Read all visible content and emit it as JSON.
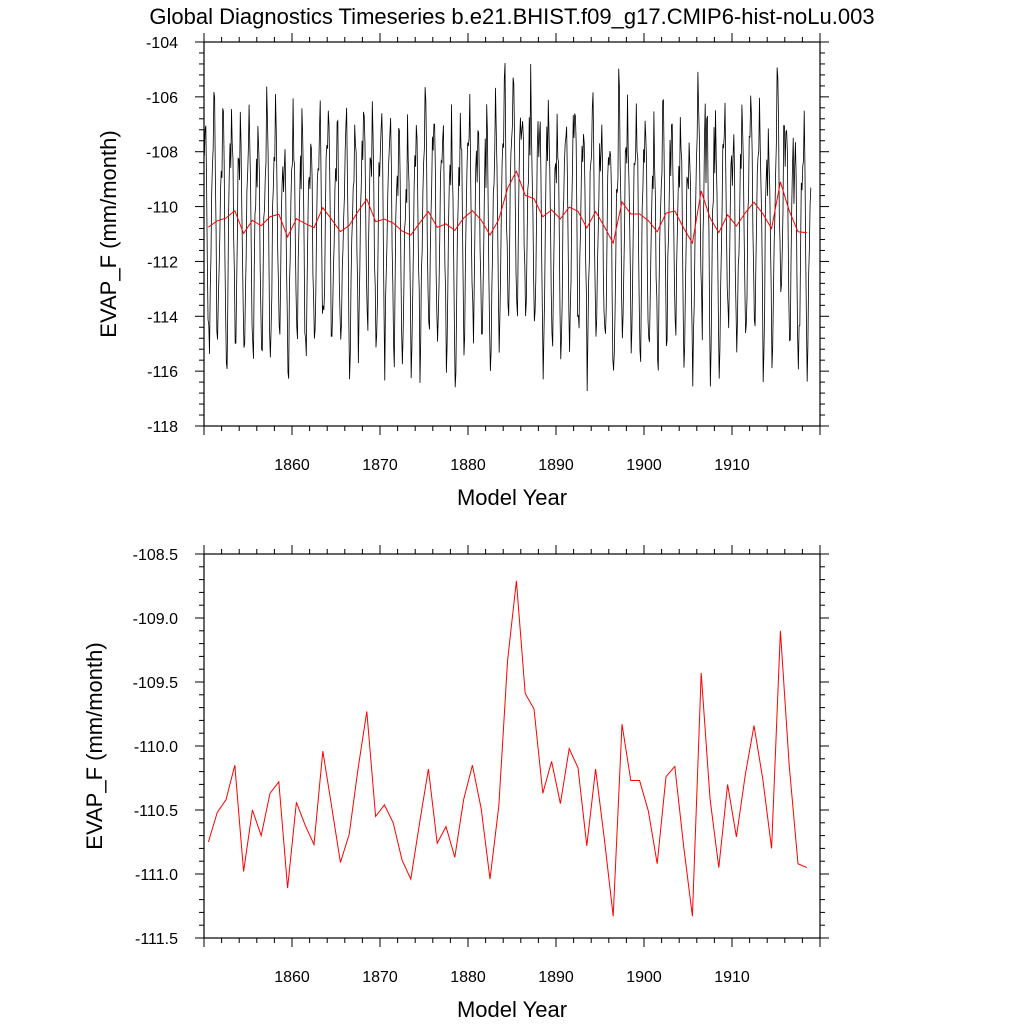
{
  "title": "Global Diagnostics Timeseries b.e21.BHIST.f09_g17.CMIP6-hist-noLu.003",
  "colors": {
    "monthly": "#000000",
    "annual": "#ff0000",
    "axis": "#000000"
  },
  "chart_data": [
    {
      "type": "line",
      "xlabel": "Model Year",
      "ylabel": "EVAP_F (mm/month)",
      "xlim": [
        1850,
        1920
      ],
      "ylim": [
        -118,
        -104
      ],
      "x_ticks": [
        1860,
        1870,
        1880,
        1890,
        1900,
        1910
      ],
      "x_tick_labels": [
        "1860",
        "1870",
        "1880",
        "1890",
        "1900",
        "1910"
      ],
      "y_ticks": [
        -104,
        -106,
        -108,
        -110,
        -112,
        -114,
        -116,
        -118
      ],
      "y_tick_labels": [
        "-104",
        "-106",
        "-108",
        "-110",
        "-112",
        "-114",
        "-116",
        "-118"
      ],
      "grid": false,
      "series": [
        {
          "style": "monthly",
          "color": "#000000",
          "x_start": 1850.0,
          "x_step_months": 1,
          "annual_cycle_offsets": [
            1.9,
            3.6,
            3.4,
            1.7,
            -1.0,
            -3.1,
            -4.6,
            -4.2,
            -2.4,
            -0.4,
            1.2,
            2.3
          ],
          "note_values": "monthly values = annual mean + seasonal offset"
        },
        {
          "style": "annual",
          "color": "#ff0000",
          "x": [
            1850.5,
            1851.5,
            1852.5,
            1853.5,
            1854.5,
            1855.5,
            1856.5,
            1857.5,
            1858.5,
            1859.5,
            1860.5,
            1861.5,
            1862.5,
            1863.5,
            1864.5,
            1865.5,
            1866.5,
            1867.5,
            1868.5,
            1869.5,
            1870.5,
            1871.5,
            1872.5,
            1873.5,
            1874.5,
            1875.5,
            1876.5,
            1877.5,
            1878.5,
            1879.5,
            1880.5,
            1881.5,
            1882.5,
            1883.5,
            1884.5,
            1885.5,
            1886.5,
            1887.5,
            1888.5,
            1889.5,
            1890.5,
            1891.5,
            1892.5,
            1893.5,
            1894.5,
            1895.5,
            1896.5,
            1897.5,
            1898.5,
            1899.5,
            1900.5,
            1901.5,
            1902.5,
            1903.5,
            1904.5,
            1905.5,
            1906.5,
            1907.5,
            1908.5,
            1909.5,
            1910.5,
            1911.5,
            1912.5,
            1913.5,
            1914.5,
            1915.5,
            1916.5,
            1917.5,
            1918.5
          ],
          "values": [
            -110.75,
            -110.52,
            -110.42,
            -110.15,
            -110.98,
            -110.5,
            -110.7,
            -110.37,
            -110.28,
            -111.11,
            -110.44,
            -110.62,
            -110.77,
            -110.04,
            -110.47,
            -110.91,
            -110.69,
            -110.18,
            -109.73,
            -110.55,
            -110.46,
            -110.6,
            -110.89,
            -111.04,
            -110.6,
            -110.18,
            -110.76,
            -110.63,
            -110.87,
            -110.42,
            -110.15,
            -110.49,
            -111.04,
            -110.47,
            -109.33,
            -108.71,
            -109.59,
            -109.71,
            -110.37,
            -110.12,
            -110.45,
            -110.02,
            -110.17,
            -110.78,
            -110.18,
            -110.73,
            -111.33,
            -109.83,
            -110.27,
            -110.27,
            -110.51,
            -110.92,
            -110.24,
            -110.16,
            -110.78,
            -111.33,
            -109.43,
            -110.41,
            -110.95,
            -110.3,
            -110.71,
            -110.23,
            -109.84,
            -110.26,
            -110.8,
            -109.1,
            -110.15,
            -110.92,
            -110.95
          ]
        }
      ]
    },
    {
      "type": "line",
      "xlabel": "Model Year",
      "ylabel": "EVAP_F (mm/month)",
      "xlim": [
        1850,
        1920
      ],
      "ylim": [
        -111.5,
        -108.5
      ],
      "x_ticks": [
        1860,
        1870,
        1880,
        1890,
        1900,
        1910
      ],
      "x_tick_labels": [
        "1860",
        "1870",
        "1880",
        "1890",
        "1900",
        "1910"
      ],
      "y_ticks": [
        -108.5,
        -109.0,
        -109.5,
        -110.0,
        -110.5,
        -111.0,
        -111.5
      ],
      "y_tick_labels": [
        "-108.5",
        "-109.0",
        "-109.5",
        "-110.0",
        "-110.5",
        "-111.0",
        "-111.5"
      ],
      "grid": false,
      "series": [
        {
          "style": "annual",
          "color": "#ff0000",
          "ref": 1
        }
      ]
    }
  ]
}
